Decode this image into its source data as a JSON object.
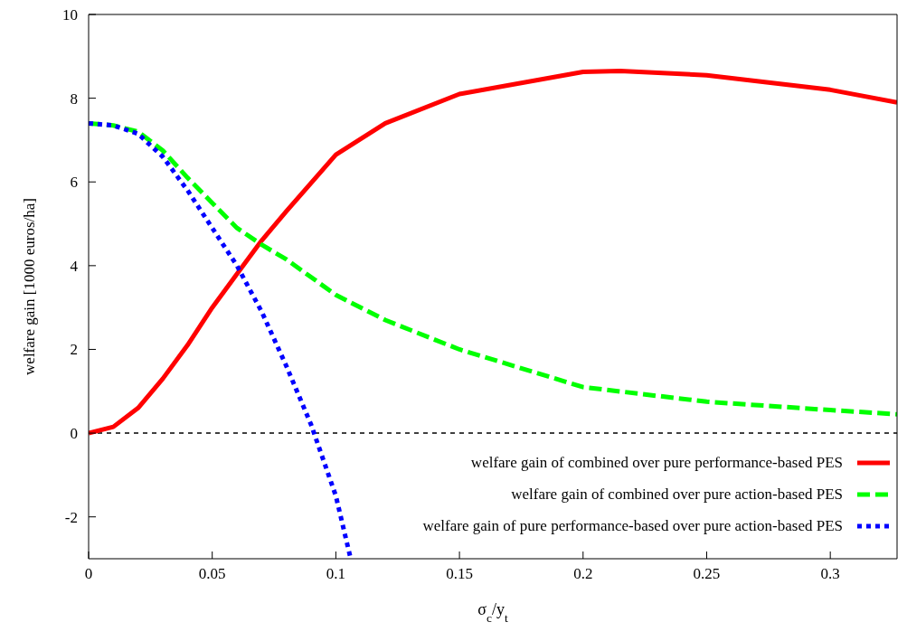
{
  "chart_data": {
    "type": "line",
    "xlabel": "σ$_{c}$/y$_{t}$",
    "ylabel": "welfare gain [1000 euros/ha]",
    "xlim": [
      0,
      0.327
    ],
    "xticks": [
      0,
      0.05,
      0.1,
      0.15,
      0.2,
      0.25,
      0.3
    ],
    "ylim": [
      -3,
      10
    ],
    "yticks": [
      -2,
      0,
      2,
      4,
      6,
      8,
      10
    ],
    "grid": false,
    "legend": "bottom right",
    "marker": "none",
    "ref_lines": [
      {
        "axis": "y",
        "value": 0,
        "color": "#000000",
        "line_style": "dotted"
      }
    ],
    "series": [
      {
        "name": "welfare gain of combined over pure performance-based PES",
        "color": "#ff0000",
        "line_style": "solid",
        "x": [
          0,
          0.01,
          0.02,
          0.03,
          0.04,
          0.05,
          0.06,
          0.07,
          0.08,
          0.1,
          0.12,
          0.15,
          0.2,
          0.215,
          0.25,
          0.3,
          0.327
        ],
        "values": [
          0,
          0.15,
          0.6,
          1.3,
          2.1,
          3.0,
          3.8,
          4.6,
          5.3,
          6.65,
          7.4,
          8.1,
          8.63,
          8.65,
          8.55,
          8.2,
          7.9
        ]
      },
      {
        "name": "welfare gain of combined over pure action-based PES",
        "color": "#00ff00",
        "line_style": "dashed",
        "x": [
          0,
          0.01,
          0.02,
          0.03,
          0.04,
          0.05,
          0.06,
          0.07,
          0.08,
          0.1,
          0.12,
          0.15,
          0.2,
          0.25,
          0.3,
          0.327
        ],
        "values": [
          7.4,
          7.35,
          7.2,
          6.75,
          6.1,
          5.5,
          4.9,
          4.5,
          4.15,
          3.3,
          2.7,
          2.0,
          1.1,
          0.75,
          0.55,
          0.45
        ]
      },
      {
        "name": "welfare gain of pure performance-based over pure action-based PES",
        "color": "#0000ff",
        "line_style": "dotted",
        "x": [
          0,
          0.01,
          0.02,
          0.03,
          0.04,
          0.05,
          0.06,
          0.07,
          0.08,
          0.09,
          0.1,
          0.106
        ],
        "values": [
          7.4,
          7.35,
          7.15,
          6.6,
          5.8,
          4.9,
          4.0,
          2.9,
          1.6,
          0.2,
          -1.5,
          -3
        ]
      }
    ]
  }
}
